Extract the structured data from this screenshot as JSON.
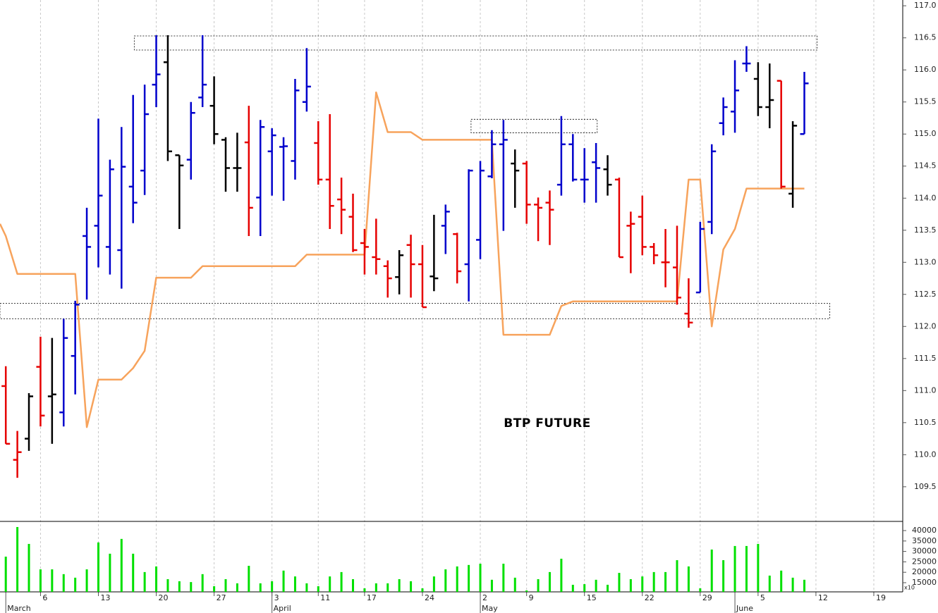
{
  "chart_data": [
    {
      "type": "ohlc",
      "title": "BTP FUTURE",
      "x": [
        0,
        1,
        2,
        3,
        4,
        5,
        6,
        7,
        8,
        9,
        10,
        11,
        12,
        13,
        14,
        15,
        16,
        17,
        18,
        19,
        20,
        21,
        22,
        23,
        24,
        25,
        26,
        27,
        28,
        29,
        30,
        31,
        32,
        33,
        34,
        35,
        36,
        37,
        38,
        39,
        40,
        41,
        42,
        43,
        44,
        45,
        46,
        47,
        48,
        49,
        50,
        51,
        52,
        53,
        54,
        55,
        56,
        57,
        58,
        59,
        60,
        61,
        62,
        63,
        64,
        65,
        66,
        67,
        68,
        69
      ],
      "open": [
        111.07,
        109.92,
        110.25,
        111.37,
        110.91,
        110.66,
        111.54,
        113.41,
        113.57,
        113.24,
        113.19,
        114.18,
        114.43,
        115.77,
        116.12,
        114.67,
        114.6,
        115.57,
        115.44,
        114.91,
        114.47,
        114.87,
        114.01,
        114.73,
        114.8,
        114.58,
        115.5,
        114.86,
        114.29,
        113.98,
        113.71,
        113.3,
        113.08,
        112.94,
        112.77,
        113.27,
        112.97,
        112.78,
        113.57,
        113.44,
        112.97,
        113.35,
        114.34,
        114.84,
        114.54,
        114.54,
        113.9,
        113.93,
        114.21,
        114.84,
        114.29,
        114.56,
        114.45,
        114.29,
        113.57,
        113.71,
        113.24,
        113.0,
        112.92,
        112.2,
        112.53,
        113.63,
        115.17,
        115.35,
        116.1,
        115.86,
        115.42,
        115.83,
        114.07,
        115.0
      ],
      "high": [
        111.38,
        110.37,
        110.96,
        111.84,
        111.82,
        112.12,
        112.4,
        113.85,
        115.24,
        114.6,
        115.11,
        115.61,
        115.77,
        116.54,
        116.54,
        114.67,
        115.5,
        116.54,
        115.9,
        114.95,
        115.02,
        115.44,
        115.22,
        115.09,
        114.95,
        115.86,
        116.34,
        115.2,
        115.31,
        114.32,
        114.07,
        113.52,
        113.68,
        113.03,
        113.19,
        113.43,
        113.27,
        113.74,
        113.9,
        113.46,
        114.45,
        114.58,
        115.06,
        115.22,
        114.76,
        114.58,
        114.01,
        114.12,
        115.28,
        115.0,
        114.78,
        114.86,
        114.67,
        114.32,
        113.79,
        114.04,
        113.3,
        113.52,
        113.57,
        112.75,
        113.63,
        114.84,
        115.57,
        116.15,
        116.37,
        116.12,
        116.1,
        115.83,
        115.2,
        115.97
      ],
      "low": [
        110.17,
        109.64,
        110.06,
        110.44,
        110.17,
        110.44,
        110.94,
        112.42,
        112.92,
        112.81,
        112.59,
        113.61,
        114.05,
        115.42,
        114.58,
        113.52,
        114.29,
        115.42,
        114.84,
        114.1,
        114.1,
        113.41,
        113.41,
        114.04,
        113.96,
        114.29,
        115.35,
        114.21,
        113.52,
        113.44,
        113.16,
        112.81,
        112.81,
        112.45,
        112.5,
        112.45,
        112.3,
        112.55,
        113.13,
        112.67,
        112.39,
        113.05,
        114.31,
        113.49,
        113.85,
        113.6,
        113.33,
        113.27,
        114.04,
        114.26,
        113.93,
        113.93,
        114.04,
        113.08,
        112.83,
        113.11,
        112.97,
        112.61,
        112.34,
        111.98,
        112.53,
        113.44,
        114.98,
        115.02,
        115.97,
        115.28,
        115.09,
        114.15,
        113.85,
        115.0
      ],
      "close": [
        110.17,
        110.04,
        110.91,
        110.61,
        110.94,
        111.82,
        112.34,
        113.24,
        114.04,
        114.45,
        114.49,
        113.93,
        115.31,
        115.93,
        114.73,
        114.51,
        115.33,
        115.77,
        115.0,
        114.47,
        114.47,
        113.85,
        115.11,
        114.98,
        114.81,
        115.68,
        115.74,
        114.29,
        113.88,
        113.82,
        113.19,
        113.24,
        113.05,
        112.75,
        113.11,
        112.97,
        112.3,
        112.75,
        113.79,
        112.86,
        114.43,
        114.43,
        114.84,
        114.91,
        114.43,
        113.9,
        113.85,
        113.82,
        114.84,
        114.29,
        114.29,
        114.47,
        114.21,
        113.08,
        113.6,
        113.24,
        113.11,
        113.0,
        112.45,
        112.06,
        113.52,
        114.73,
        115.42,
        115.68,
        116.1,
        115.42,
        115.53,
        114.18,
        115.13,
        115.79
      ],
      "bar_colors": [
        "#e60000",
        "#e60000",
        "#000000",
        "#e60000",
        "#000000",
        "#0000cc",
        "#0000cc",
        "#0000cc",
        "#0000cc",
        "#0000cc",
        "#0000cc",
        "#0000cc",
        "#0000cc",
        "#0000cc",
        "#000000",
        "#000000",
        "#0000cc",
        "#0000cc",
        "#000000",
        "#000000",
        "#000000",
        "#e60000",
        "#0000cc",
        "#0000cc",
        "#0000cc",
        "#0000cc",
        "#0000cc",
        "#e60000",
        "#e60000",
        "#e60000",
        "#e60000",
        "#e60000",
        "#e60000",
        "#e60000",
        "#000000",
        "#e60000",
        "#e60000",
        "#000000",
        "#0000cc",
        "#e60000",
        "#0000cc",
        "#0000cc",
        "#0000cc",
        "#0000cc",
        "#000000",
        "#e60000",
        "#e60000",
        "#e60000",
        "#0000cc",
        "#0000cc",
        "#0000cc",
        "#0000cc",
        "#000000",
        "#e60000",
        "#e60000",
        "#e60000",
        "#e60000",
        "#e60000",
        "#e60000",
        "#e60000",
        "#0000cc",
        "#0000cc",
        "#0000cc",
        "#0000cc",
        "#0000cc",
        "#000000",
        "#000000",
        "#e60000",
        "#000000",
        "#0000cc"
      ],
      "line": {
        "color": "#f7a35c",
        "x": [
          -0.5,
          0,
          1,
          6,
          7,
          8,
          10,
          11,
          12,
          13,
          16,
          17,
          25,
          26,
          31,
          32,
          33,
          35,
          36,
          42,
          43,
          47,
          48,
          49,
          58,
          59,
          60,
          61,
          62,
          63,
          64,
          69
        ],
        "values": [
          113.6,
          113.41,
          112.82,
          112.82,
          110.43,
          111.17,
          111.17,
          111.35,
          111.62,
          112.76,
          112.76,
          112.94,
          112.94,
          113.12,
          113.12,
          115.65,
          115.03,
          115.03,
          114.91,
          114.91,
          111.87,
          111.87,
          112.32,
          112.39,
          112.39,
          114.29,
          114.29,
          112.0,
          113.2,
          113.52,
          114.15,
          114.15
        ]
      },
      "zones": [
        {
          "x": [
            11.1,
            70.1
          ],
          "y": [
            116.31,
            116.53
          ]
        },
        {
          "x": [
            40.2,
            51.1
          ],
          "y": [
            115.02,
            115.23
          ]
        },
        {
          "x": [
            -0.5,
            71.2
          ],
          "y": [
            112.12,
            112.36
          ]
        }
      ],
      "xlim": [
        -0.5,
        77.5
      ],
      "ylim": [
        108.96,
        117.09
      ],
      "yticks": [
        109.5,
        {
          "value": 110,
          "label": "110.0"
        },
        110.5,
        {
          "value": 111,
          "label": "111.0"
        },
        111.5,
        {
          "value": 112,
          "label": "112.0"
        },
        112.5,
        {
          "value": 113,
          "label": "113.0"
        },
        113.5,
        {
          "value": 114,
          "label": "114.0"
        },
        114.5,
        {
          "value": 115,
          "label": "115.0"
        },
        115.5,
        {
          "value": 116,
          "label": "116.0"
        },
        116.5,
        {
          "value": 117,
          "label": "117.0"
        }
      ]
    },
    {
      "type": "bar",
      "color": "#00e000",
      "unit_label": "x10",
      "x": [
        0,
        1,
        2,
        3,
        4,
        5,
        6,
        7,
        8,
        9,
        10,
        11,
        12,
        13,
        14,
        15,
        16,
        17,
        18,
        19,
        20,
        21,
        22,
        23,
        24,
        25,
        26,
        27,
        28,
        29,
        30,
        31,
        32,
        33,
        34,
        35,
        36,
        37,
        38,
        39,
        40,
        41,
        42,
        43,
        44,
        45,
        46,
        47,
        48,
        49,
        50,
        51,
        52,
        53,
        54,
        55,
        56,
        57,
        58,
        59,
        60,
        61,
        62,
        63,
        64,
        65,
        66,
        67,
        68,
        69
      ],
      "values": [
        27500,
        41700,
        33600,
        21400,
        21400,
        19100,
        17400,
        21400,
        34300,
        28900,
        36000,
        28900,
        20100,
        22800,
        16700,
        15700,
        15300,
        19100,
        13300,
        16700,
        14700,
        23100,
        14700,
        15700,
        20800,
        18000,
        14700,
        13300,
        18000,
        20100,
        16700,
        12300,
        14700,
        14700,
        16700,
        15700,
        12300,
        18000,
        21400,
        22800,
        23500,
        24100,
        16400,
        24100,
        17400,
        11300,
        16700,
        20100,
        26500,
        14000,
        14300,
        16400,
        14000,
        19700,
        16700,
        18000,
        20100,
        20100,
        25800,
        22800,
        12300,
        30900,
        25800,
        32600,
        32600,
        33600,
        18400,
        20800,
        17400,
        16400
      ],
      "xlim": [
        -0.5,
        77.5
      ],
      "ylim": [
        10600,
        44400
      ],
      "yticks": [
        15000,
        20000,
        25000,
        30000,
        35000,
        40000
      ],
      "xticks": [
        {
          "value": 3,
          "label": "6"
        },
        {
          "value": 8,
          "label": "13"
        },
        {
          "value": 13,
          "label": "20"
        },
        {
          "value": 18,
          "label": "27"
        },
        {
          "value": 23,
          "label": "3"
        },
        {
          "value": 27,
          "label": "11"
        },
        {
          "value": 31,
          "label": "17"
        },
        {
          "value": 36,
          "label": "24"
        },
        {
          "value": 41,
          "label": "2"
        },
        {
          "value": 45,
          "label": "9"
        },
        {
          "value": 50,
          "label": "15"
        },
        {
          "value": 55,
          "label": "22"
        },
        {
          "value": 60,
          "label": "29"
        },
        {
          "value": 65,
          "label": "5"
        },
        {
          "value": 70,
          "label": "12"
        },
        {
          "value": 75,
          "label": "19"
        }
      ],
      "month_ticks": [
        {
          "value": 0,
          "label": "March"
        },
        {
          "value": 23,
          "label": "April"
        },
        {
          "value": 41,
          "label": "May"
        },
        {
          "value": 63,
          "label": "June"
        }
      ]
    }
  ]
}
